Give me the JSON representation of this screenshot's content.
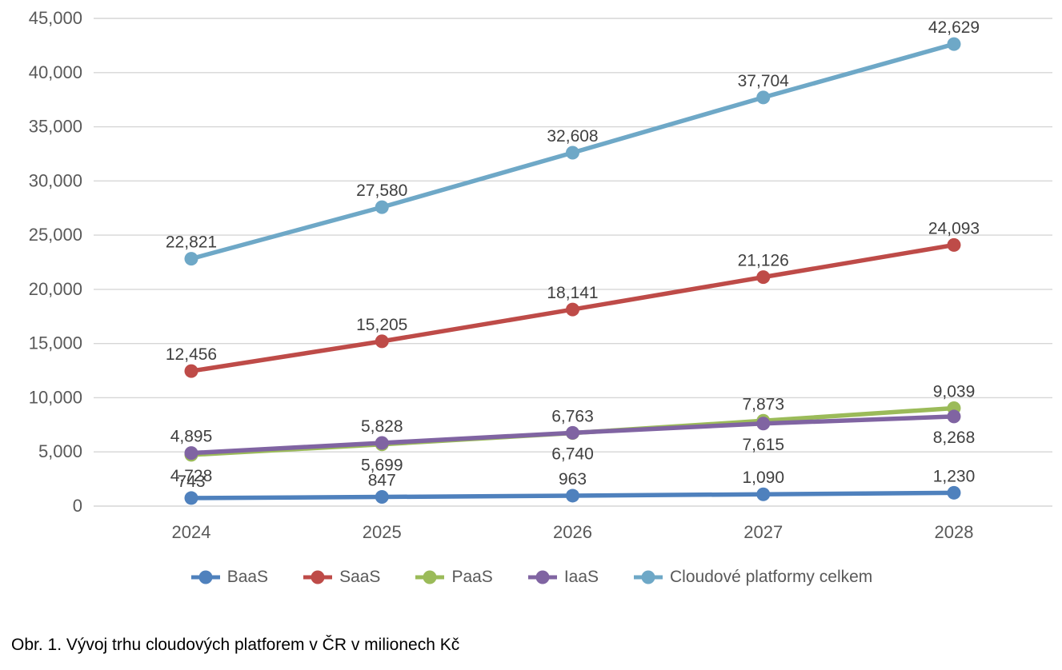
{
  "chart_data": {
    "type": "line",
    "title": "",
    "categories": [
      "2024",
      "2025",
      "2026",
      "2027",
      "2028"
    ],
    "series": [
      {
        "name": "BaaS",
        "color": "#4F81BD",
        "values": [
          743,
          847,
          963,
          1090,
          1230
        ],
        "label_side": [
          "above",
          "above",
          "above",
          "above",
          "above"
        ]
      },
      {
        "name": "SaaS",
        "color": "#BE4B48",
        "values": [
          12456,
          15205,
          18141,
          21126,
          24093
        ],
        "label_side": [
          "above",
          "above",
          "above",
          "above",
          "above"
        ]
      },
      {
        "name": "PaaS",
        "color": "#9BBB59",
        "values": [
          4728,
          5699,
          6740,
          7873,
          9039
        ],
        "label_side": [
          "below",
          "below",
          "below",
          "above",
          "above"
        ]
      },
      {
        "name": "IaaS",
        "color": "#8064A2",
        "values": [
          4895,
          5828,
          6763,
          7615,
          8268
        ],
        "label_side": [
          "above",
          "above",
          "above",
          "below",
          "below"
        ]
      },
      {
        "name": "Cloudové platformy celkem",
        "color": "#6EA8C7",
        "values": [
          22821,
          27580,
          32608,
          37704,
          42629
        ],
        "label_side": [
          "above",
          "above",
          "above",
          "above",
          "above"
        ]
      }
    ],
    "ylim": [
      0,
      45000
    ],
    "ytick_step": 5000,
    "ytick_labels": [
      "0",
      "5,000",
      "10,000",
      "15,000",
      "20,000",
      "25,000",
      "30,000",
      "35,000",
      "40,000",
      "45,000"
    ],
    "grid": true,
    "legend_position": "bottom",
    "number_format": "thousands-comma"
  },
  "caption": "Obr. 1. Vývoj trhu cloudových platforem v ČR v milionech Kč",
  "style": {
    "gridline_color": "#D6D6D6",
    "axis_label_color": "#595959",
    "data_label_color": "#404040",
    "background": "#FFFFFF"
  }
}
